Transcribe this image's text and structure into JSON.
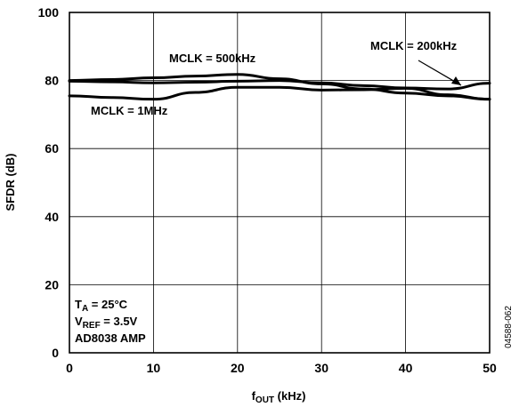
{
  "chart_data": {
    "type": "line",
    "xlabel": "f",
    "xlabel_sub": "OUT",
    "xlabel_unit": " (kHz)",
    "ylabel": "SFDR (dB)",
    "xlim": [
      0,
      50
    ],
    "ylim": [
      0,
      100
    ],
    "x_ticks": [
      "0",
      "10",
      "20",
      "30",
      "40",
      "50"
    ],
    "y_ticks": [
      "0",
      "20",
      "40",
      "60",
      "80",
      "100"
    ],
    "grid": true,
    "series": [
      {
        "name": "MCLK = 500kHz",
        "x": [
          0,
          5,
          10,
          15,
          20,
          25,
          30,
          35,
          40,
          45,
          50
        ],
        "y": [
          80,
          80.3,
          80.8,
          81.3,
          81.8,
          80.5,
          79,
          77.5,
          76.3,
          75.5,
          74.5
        ]
      },
      {
        "name": "MCLK = 200kHz",
        "x": [
          0,
          5,
          10,
          15,
          20,
          25,
          30,
          35,
          40,
          45,
          50
        ],
        "y": [
          79.8,
          79.6,
          79.3,
          79.5,
          79.8,
          80,
          79.3,
          78.5,
          77.8,
          77.5,
          79.2
        ]
      },
      {
        "name": "MCLK = 1MHz",
        "x": [
          0,
          5,
          10,
          15,
          20,
          25,
          30,
          35,
          40,
          45,
          50
        ],
        "y": [
          75.5,
          75,
          74.5,
          76.5,
          78,
          78,
          77.2,
          77.3,
          77.7,
          75.8,
          74.5
        ]
      }
    ],
    "annotations": {
      "label_500": "MCLK = 500kHz",
      "label_200": "MCLK = 200kHz",
      "label_1m": "MCLK = 1MHz",
      "cond_ta_main": "T",
      "cond_ta_sub": "A",
      "cond_ta_rest": " = 25°C",
      "cond_vref_main": "V",
      "cond_vref_sub": "REF",
      "cond_vref_rest": " = 3.5V",
      "cond_amp": "AD8038 AMP",
      "doc_id": "04588-062"
    }
  }
}
